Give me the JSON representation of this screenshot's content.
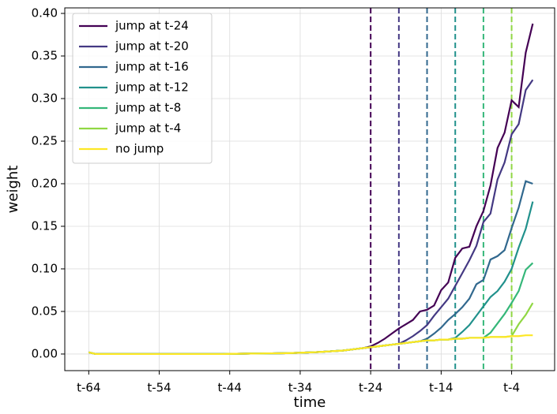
{
  "chart_data": {
    "type": "line",
    "x_label": "time",
    "y_label": "weight",
    "x": [
      -64,
      -63,
      -62,
      -61,
      -60,
      -59,
      -58,
      -57,
      -56,
      -55,
      -54,
      -53,
      -52,
      -51,
      -50,
      -49,
      -48,
      -47,
      -46,
      -45,
      -44,
      -43,
      -42,
      -41,
      -40,
      -39,
      -38,
      -37,
      -36,
      -35,
      -34,
      -33,
      -32,
      -31,
      -30,
      -29,
      -28,
      -27,
      -26,
      -25,
      -24,
      -23,
      -22,
      -21,
      -20,
      -19,
      -18,
      -17,
      -16,
      -15,
      -14,
      -13,
      -12,
      -11,
      -10,
      -9,
      -8,
      -7,
      -6,
      -5,
      -4,
      -3,
      -2,
      -1
    ],
    "xlim": [
      -67.4,
      2.1
    ],
    "xticks": [
      {
        "value": -64,
        "label": "t-64"
      },
      {
        "value": -54,
        "label": "t-54"
      },
      {
        "value": -44,
        "label": "t-44"
      },
      {
        "value": -34,
        "label": "t-34"
      },
      {
        "value": -24,
        "label": "t-24"
      },
      {
        "value": -14,
        "label": "t-14"
      },
      {
        "value": -4,
        "label": "t-4"
      }
    ],
    "ylim": [
      -0.0195,
      0.4065
    ],
    "yticks": [
      {
        "value": 0,
        "label": "0.00"
      },
      {
        "value": 0.05,
        "label": "0.05"
      },
      {
        "value": 0.1,
        "label": "0.10"
      },
      {
        "value": 0.15,
        "label": "0.15"
      },
      {
        "value": 0.2,
        "label": "0.20"
      },
      {
        "value": 0.25,
        "label": "0.25"
      },
      {
        "value": 0.3,
        "label": "0.30"
      },
      {
        "value": 0.35,
        "label": "0.35"
      },
      {
        "value": 0.4,
        "label": "0.40"
      }
    ],
    "grid": true,
    "legend": "upper left",
    "series": [
      {
        "name": "jump at t-24",
        "color": "#440154",
        "jump": -24,
        "values": [
          0.002,
          0,
          0,
          0,
          0,
          0,
          0,
          0,
          0,
          0,
          0,
          0,
          0,
          0,
          0,
          0,
          0,
          0,
          0,
          0,
          0.0002,
          0.0003,
          0.0004,
          0.0005,
          0.0006,
          0.0007,
          0.0008,
          0.0009,
          0.001,
          0.0012,
          0.0015,
          0.0018,
          0.0021,
          0.0025,
          0.003,
          0.0035,
          0.004,
          0.005,
          0.006,
          0.007,
          0.009,
          0.013,
          0.018,
          0.024,
          0.03,
          0.035,
          0.04,
          0.05,
          0.052,
          0.057,
          0.075,
          0.084,
          0.113,
          0.124,
          0.126,
          0.15,
          0.168,
          0.198,
          0.242,
          0.26,
          0.298,
          0.29,
          0.354,
          0.388
        ]
      },
      {
        "name": "jump at t-20",
        "color": "#443983",
        "jump": -20,
        "values": [
          0.002,
          0,
          0,
          0,
          0,
          0,
          0,
          0,
          0,
          0,
          0,
          0,
          0,
          0,
          0,
          0,
          0,
          0,
          0,
          0,
          0.0002,
          0.0003,
          0.0004,
          0.0005,
          0.0006,
          0.0007,
          0.0008,
          0.0009,
          0.001,
          0.0012,
          0.0015,
          0.0018,
          0.0021,
          0.0025,
          0.003,
          0.0035,
          0.004,
          0.005,
          0.006,
          0.007,
          0.008,
          0.009,
          0.01,
          0.011,
          0.012,
          0.016,
          0.021,
          0.027,
          0.034,
          0.045,
          0.055,
          0.065,
          0.08,
          0.095,
          0.11,
          0.127,
          0.155,
          0.165,
          0.205,
          0.225,
          0.258,
          0.27,
          0.31,
          0.322
        ]
      },
      {
        "name": "jump at t-16",
        "color": "#31688e",
        "jump": -16,
        "values": [
          0.002,
          0,
          0,
          0,
          0,
          0,
          0,
          0,
          0,
          0,
          0,
          0,
          0,
          0,
          0,
          0,
          0,
          0,
          0,
          0,
          0.0002,
          0.0003,
          0.0004,
          0.0005,
          0.0006,
          0.0007,
          0.0008,
          0.0009,
          0.001,
          0.0012,
          0.0015,
          0.0018,
          0.0021,
          0.0025,
          0.003,
          0.0035,
          0.004,
          0.005,
          0.006,
          0.007,
          0.008,
          0.009,
          0.01,
          0.011,
          0.012,
          0.013,
          0.014,
          0.015,
          0.018,
          0.024,
          0.031,
          0.04,
          0.047,
          0.055,
          0.065,
          0.082,
          0.087,
          0.111,
          0.115,
          0.122,
          0.148,
          0.172,
          0.203,
          0.2
        ]
      },
      {
        "name": "jump at t-12",
        "color": "#21918c",
        "jump": -12,
        "values": [
          0.002,
          0,
          0,
          0,
          0,
          0,
          0,
          0,
          0,
          0,
          0,
          0,
          0,
          0,
          0,
          0,
          0,
          0,
          0,
          0,
          0.0002,
          0.0003,
          0.0004,
          0.0005,
          0.0006,
          0.0007,
          0.0008,
          0.0009,
          0.001,
          0.0012,
          0.0015,
          0.0018,
          0.0021,
          0.0025,
          0.003,
          0.0035,
          0.004,
          0.005,
          0.006,
          0.007,
          0.008,
          0.009,
          0.01,
          0.011,
          0.012,
          0.013,
          0.014,
          0.015,
          0.016,
          0.016,
          0.017,
          0.017,
          0.019,
          0.026,
          0.034,
          0.045,
          0.056,
          0.067,
          0.074,
          0.085,
          0.1,
          0.125,
          0.147,
          0.179
        ]
      },
      {
        "name": "jump at t-8",
        "color": "#35b779",
        "jump": -8,
        "values": [
          0.002,
          0,
          0,
          0,
          0,
          0,
          0,
          0,
          0,
          0,
          0,
          0,
          0,
          0,
          0,
          0,
          0,
          0,
          0,
          0,
          0.0002,
          0.0003,
          0.0004,
          0.0005,
          0.0006,
          0.0007,
          0.0008,
          0.0009,
          0.001,
          0.0012,
          0.0015,
          0.0018,
          0.0021,
          0.0025,
          0.003,
          0.0035,
          0.004,
          0.005,
          0.006,
          0.007,
          0.008,
          0.009,
          0.01,
          0.011,
          0.012,
          0.013,
          0.014,
          0.015,
          0.016,
          0.016,
          0.017,
          0.017,
          0.018,
          0.018,
          0.019,
          0.019,
          0.019,
          0.025,
          0.036,
          0.047,
          0.06,
          0.074,
          0.099,
          0.107
        ]
      },
      {
        "name": "jump at t-4",
        "color": "#90d743",
        "jump": -4,
        "values": [
          0.002,
          0,
          0,
          0,
          0,
          0,
          0,
          0,
          0,
          0,
          0,
          0,
          0,
          0,
          0,
          0,
          0,
          0,
          0,
          0,
          0.0002,
          0.0003,
          0.0004,
          0.0005,
          0.0006,
          0.0007,
          0.0008,
          0.0009,
          0.001,
          0.0012,
          0.0015,
          0.0018,
          0.0021,
          0.0025,
          0.003,
          0.0035,
          0.004,
          0.005,
          0.006,
          0.007,
          0.008,
          0.009,
          0.01,
          0.011,
          0.012,
          0.013,
          0.014,
          0.015,
          0.016,
          0.016,
          0.017,
          0.017,
          0.018,
          0.018,
          0.019,
          0.019,
          0.019,
          0.02,
          0.02,
          0.02,
          0.021,
          0.035,
          0.046,
          0.06
        ]
      },
      {
        "name": "no jump",
        "color": "#fde725",
        "values": [
          0.002,
          0,
          0,
          0,
          0,
          0,
          0,
          0,
          0,
          0,
          0,
          0,
          0,
          0,
          0,
          0,
          0,
          0,
          0,
          0,
          0.0002,
          0.0003,
          0.0004,
          0.0005,
          0.0006,
          0.0007,
          0.0008,
          0.0009,
          0.001,
          0.0012,
          0.0015,
          0.0018,
          0.0021,
          0.0025,
          0.003,
          0.0035,
          0.004,
          0.005,
          0.006,
          0.007,
          0.008,
          0.009,
          0.01,
          0.011,
          0.012,
          0.013,
          0.014,
          0.015,
          0.016,
          0.016,
          0.017,
          0.017,
          0.018,
          0.018,
          0.019,
          0.019,
          0.019,
          0.02,
          0.02,
          0.02,
          0.021,
          0.021,
          0.022,
          0.022
        ]
      }
    ]
  }
}
